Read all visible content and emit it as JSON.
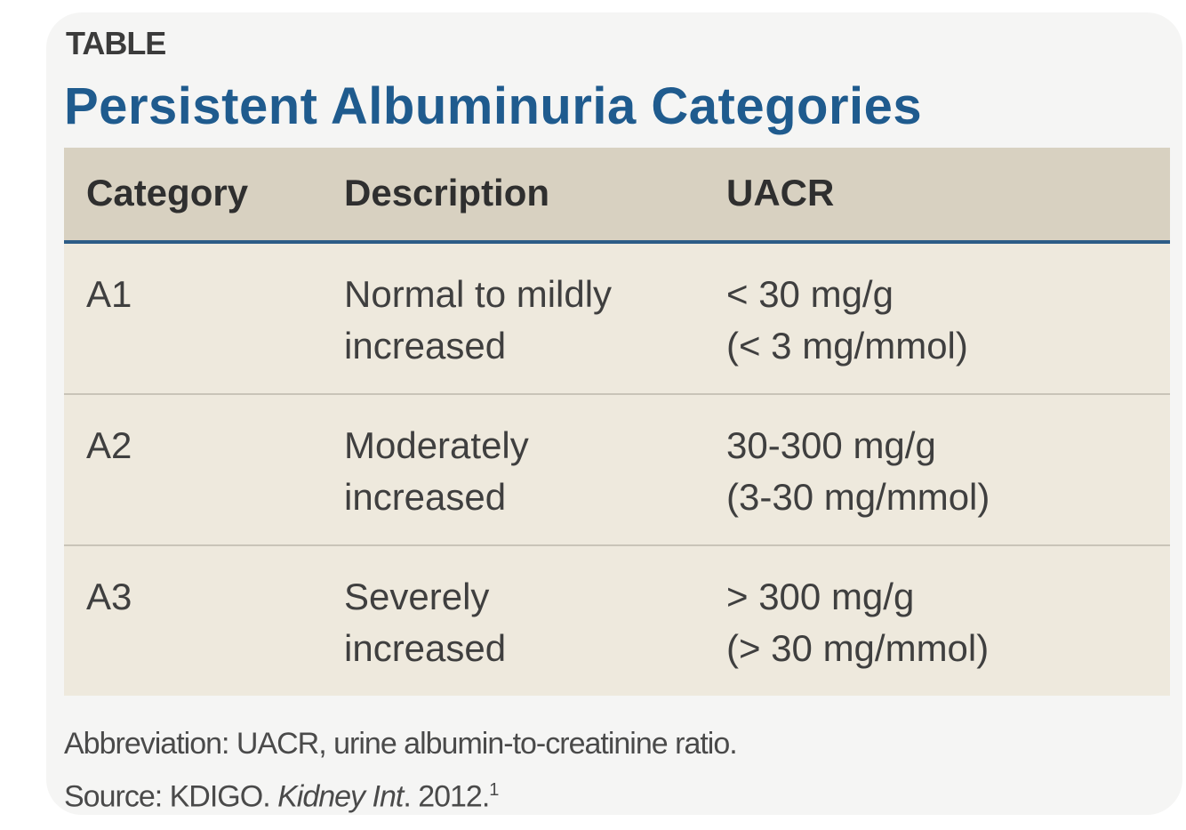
{
  "header": {
    "label": "TABLE",
    "title": "Persistent Albuminuria Categories"
  },
  "table": {
    "columns": [
      "Category",
      "Description",
      "UACR"
    ],
    "rows": [
      [
        [
          "A1"
        ],
        [
          "Normal to mildly",
          "increased"
        ],
        [
          "< 30 mg/g",
          "(< 3 mg/mmol)"
        ]
      ],
      [
        [
          "A2"
        ],
        [
          "Moderately",
          "increased"
        ],
        [
          "30-300 mg/g",
          "(3-30 mg/mmol)"
        ]
      ],
      [
        [
          "A3"
        ],
        [
          "Severely",
          "increased"
        ],
        [
          "> 300 mg/g",
          "(> 30 mg/mmol)"
        ]
      ]
    ]
  },
  "footer": {
    "abbreviation": "Abbreviation: UACR, urine albumin-to-creatinine ratio.",
    "source": {
      "prefix": "Source: KDIGO. ",
      "journal": "Kidney Int",
      "suffix": ". 2012.",
      "reference": "1"
    }
  }
}
